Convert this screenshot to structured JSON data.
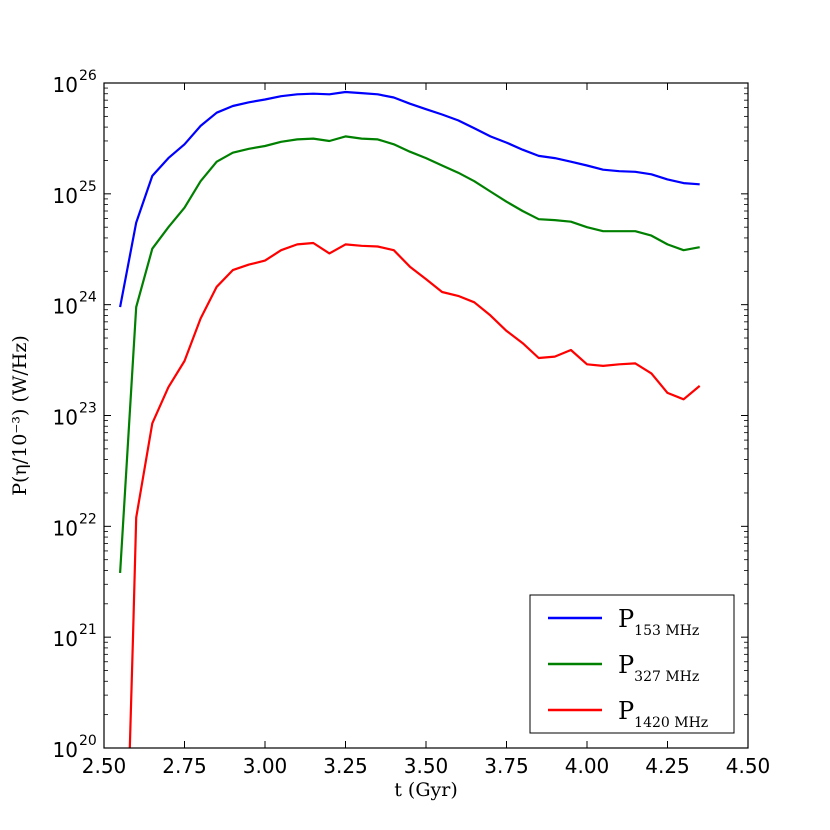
{
  "chart_data": {
    "type": "line",
    "xlabel": "t (Gyr)",
    "ylabel": "P(η/10⁻³) (W/Hz)",
    "xlim": [
      2.5,
      4.5
    ],
    "ylim": [
      1e+20,
      1e+26
    ],
    "yscale": "log",
    "grid": false,
    "legend_position": "lower-right",
    "x_ticks": [
      "2.50",
      "2.75",
      "3.00",
      "3.25",
      "3.50",
      "3.75",
      "4.00",
      "4.25",
      "4.50"
    ],
    "y_ticks": [
      {
        "base": "10",
        "exp": "20"
      },
      {
        "base": "10",
        "exp": "21"
      },
      {
        "base": "10",
        "exp": "22"
      },
      {
        "base": "10",
        "exp": "23"
      },
      {
        "base": "10",
        "exp": "24"
      },
      {
        "base": "10",
        "exp": "25"
      },
      {
        "base": "10",
        "exp": "26"
      }
    ],
    "series": [
      {
        "name": "P153 MHz",
        "label_main": "P",
        "label_sub": "153 MHz",
        "color": "#0000ff",
        "x": [
          2.55,
          2.6,
          2.65,
          2.7,
          2.75,
          2.8,
          2.85,
          2.9,
          2.95,
          3.0,
          3.05,
          3.1,
          3.15,
          3.2,
          3.25,
          3.3,
          3.35,
          3.4,
          3.45,
          3.5,
          3.55,
          3.6,
          3.65,
          3.7,
          3.75,
          3.8,
          3.85,
          3.9,
          3.95,
          4.0,
          4.05,
          4.1,
          4.15,
          4.2,
          4.25,
          4.3,
          4.35
        ],
        "y": [
          9.5e+23,
          5.5e+24,
          1.45e+25,
          2.1e+25,
          2.8e+25,
          4.1e+25,
          5.4e+25,
          6.2e+25,
          6.7e+25,
          7.1e+25,
          7.6e+25,
          7.9e+25,
          8e+25,
          7.9e+25,
          8.3e+25,
          8.1e+25,
          7.9e+25,
          7.4e+25,
          6.5e+25,
          5.8e+25,
          5.2e+25,
          4.6e+25,
          3.9e+25,
          3.3e+25,
          2.9e+25,
          2.5e+25,
          2.2e+25,
          2.1e+25,
          1.95e+25,
          1.8e+25,
          1.65e+25,
          1.6e+25,
          1.58e+25,
          1.5e+25,
          1.35e+25,
          1.25e+25,
          1.22e+25
        ]
      },
      {
        "name": "P327 MHz",
        "label_main": "P",
        "label_sub": "327 MHz",
        "color": "#008000",
        "x": [
          2.55,
          2.6,
          2.65,
          2.7,
          2.75,
          2.8,
          2.85,
          2.9,
          2.95,
          3.0,
          3.05,
          3.1,
          3.15,
          3.2,
          3.25,
          3.3,
          3.35,
          3.4,
          3.45,
          3.5,
          3.55,
          3.6,
          3.65,
          3.7,
          3.75,
          3.8,
          3.85,
          3.9,
          3.95,
          4.0,
          4.05,
          4.1,
          4.15,
          4.2,
          4.25,
          4.3,
          4.35
        ],
        "y": [
          3.8e+21,
          9.5e+23,
          3.2e+24,
          5e+24,
          7.5e+24,
          1.3e+25,
          1.95e+25,
          2.35e+25,
          2.55e+25,
          2.7e+25,
          2.95e+25,
          3.1e+25,
          3.15e+25,
          3e+25,
          3.3e+25,
          3.15e+25,
          3.1e+25,
          2.8e+25,
          2.4e+25,
          2.1e+25,
          1.8e+25,
          1.55e+25,
          1.3e+25,
          1.05e+25,
          8.5e+24,
          7e+24,
          5.9e+24,
          5.8e+24,
          5.6e+24,
          5e+24,
          4.6e+24,
          4.6e+24,
          4.6e+24,
          4.2e+24,
          3.5e+24,
          3.1e+24,
          3.3e+24
        ]
      },
      {
        "name": "P1420 MHz",
        "label_main": "P",
        "label_sub": "1420 MHz",
        "color": "#ff0000",
        "x": [
          2.58,
          2.59,
          2.6,
          2.65,
          2.7,
          2.75,
          2.8,
          2.85,
          2.9,
          2.95,
          3.0,
          3.05,
          3.1,
          3.15,
          3.2,
          3.25,
          3.3,
          3.35,
          3.4,
          3.45,
          3.5,
          3.55,
          3.6,
          3.65,
          3.7,
          3.75,
          3.8,
          3.85,
          3.9,
          3.95,
          4.0,
          4.05,
          4.1,
          4.15,
          4.2,
          4.25,
          4.3,
          4.35
        ],
        "y": [
          1e+20,
          1e+21,
          1.2e+22,
          8.5e+22,
          1.8e+23,
          3.1e+23,
          7.5e+23,
          1.45e+24,
          2.05e+24,
          2.3e+24,
          2.5e+24,
          3.1e+24,
          3.5e+24,
          3.6e+24,
          2.9e+24,
          3.5e+24,
          3.4e+24,
          3.35e+24,
          3.1e+24,
          2.2e+24,
          1.7e+24,
          1.3e+24,
          1.2e+24,
          1.05e+24,
          8e+23,
          5.8e+23,
          4.5e+23,
          3.3e+23,
          3.4e+23,
          3.9e+23,
          2.9e+23,
          2.8e+23,
          2.9e+23,
          2.95e+23,
          2.4e+23,
          1.6e+23,
          1.4e+23,
          1.85e+23
        ]
      }
    ]
  }
}
